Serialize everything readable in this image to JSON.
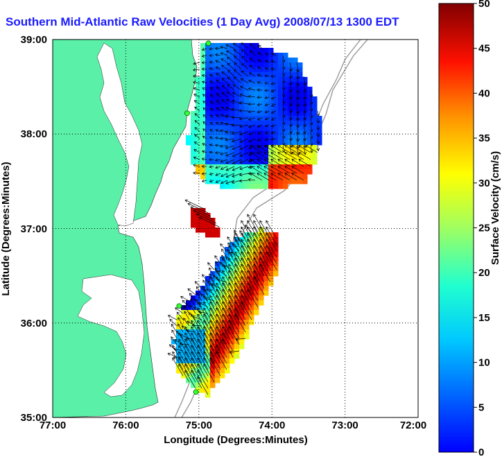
{
  "title": "Southern Mid-Atlantic Raw Velocities (1 Day Avg) 2008/07/13 1300 EDT",
  "map": {
    "xlabel": "Longitude (Degrees:Minutes)",
    "ylabel": "Latitude (Degrees:Minutes)",
    "lon_range": [
      -77,
      -72
    ],
    "lat_range": [
      35,
      39
    ],
    "x_ticks": [
      "77:00",
      "76:00",
      "75:00",
      "74:00",
      "73:00",
      "72:00"
    ],
    "y_ticks": [
      "35:00",
      "36:00",
      "37:00",
      "38:00",
      "39:00"
    ],
    "land_color": "#5af0a8",
    "water_color": "#ffffff",
    "grid": "dotted"
  },
  "colorbar": {
    "label": "Surface Velocity (cm/s)",
    "min": 0,
    "max": 50,
    "ticks": [
      "0",
      "5",
      "10",
      "15",
      "20",
      "25",
      "30",
      "35",
      "40",
      "45",
      "50"
    ],
    "colormap": "jet"
  },
  "stations": [
    {
      "lon": -74.87,
      "lat": 38.96
    },
    {
      "lon": -75.16,
      "lat": 38.22
    },
    {
      "lon": -75.27,
      "lat": 36.18
    },
    {
      "lon": -75.04,
      "lat": 35.27
    }
  ]
}
